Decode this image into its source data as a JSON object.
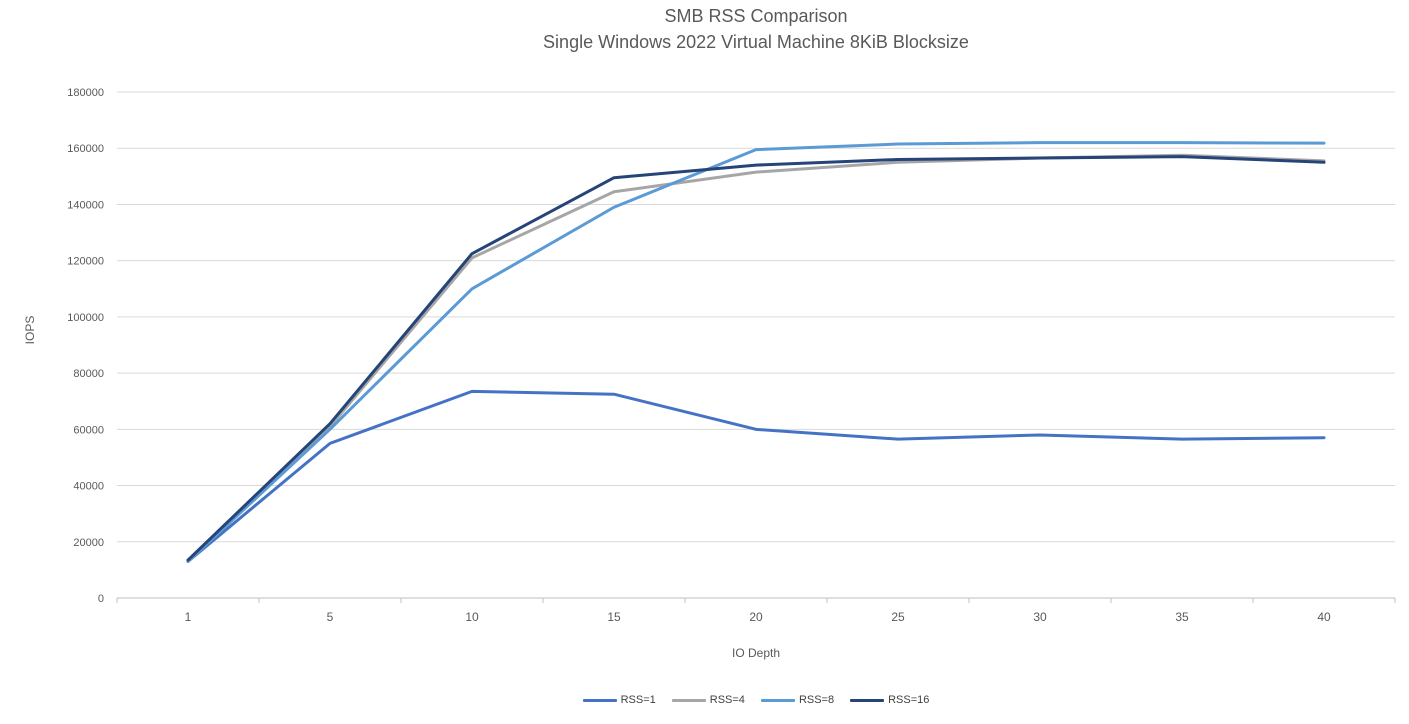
{
  "chart_data": {
    "type": "line",
    "title": "SMB RSS Comparison",
    "subtitle": "Single Windows 2022 Virtual Machine 8KiB Blocksize",
    "xlabel": "IO Depth",
    "ylabel": "IOPS",
    "x": [
      1,
      5,
      10,
      15,
      20,
      25,
      30,
      35,
      40
    ],
    "ylim": [
      0,
      180000
    ],
    "ytick_step": 20000,
    "grid": true,
    "legend_position": "bottom",
    "series": [
      {
        "name": "RSS=1",
        "color": "#4472C4",
        "values": [
          13000,
          55000,
          73500,
          72500,
          60000,
          56500,
          58000,
          56500,
          57000
        ]
      },
      {
        "name": "RSS=4",
        "color": "#A6A6A6",
        "values": [
          13000,
          61000,
          121000,
          144500,
          151500,
          155000,
          156500,
          157500,
          155500
        ]
      },
      {
        "name": "RSS=8",
        "color": "#5B9BD5",
        "values": [
          13000,
          60000,
          110000,
          139000,
          159500,
          161500,
          162000,
          162000,
          161800
        ]
      },
      {
        "name": "RSS=16",
        "color": "#264478",
        "values": [
          13500,
          62000,
          122500,
          149500,
          154000,
          156000,
          156500,
          157000,
          155000
        ]
      }
    ]
  },
  "colors": {
    "gridline": "#D9D9D9",
    "axis_line": "#BFBFBF",
    "text": "#595959"
  }
}
